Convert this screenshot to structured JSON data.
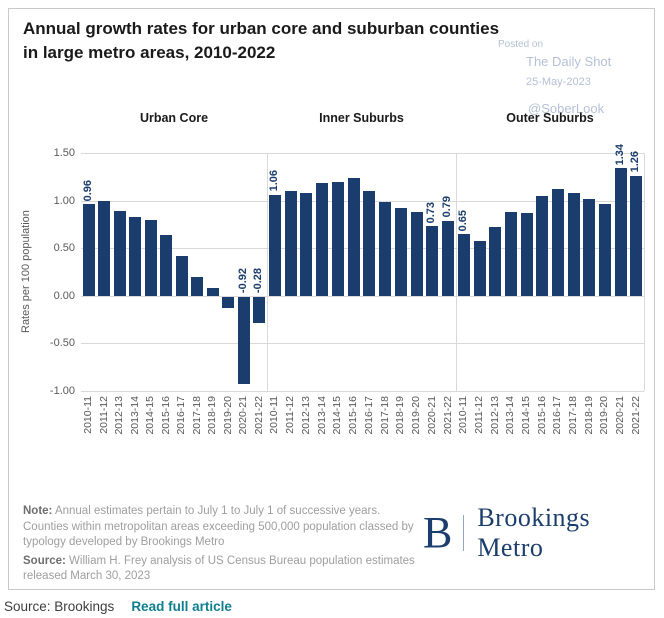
{
  "card": {
    "title": "Annual growth rates for urban core and suburban counties in large metro areas, 2010-2022",
    "watermark": {
      "line1": "Posted on",
      "line2": "The Daily Shot",
      "line3": "25-May-2023",
      "line4": "@SoberLook"
    },
    "notes": {
      "note_label": "Note:",
      "note_text": "Annual estimates pertain to July 1 to July 1 of successive years. Counties within metropolitan areas exceeding 500,000 population classed by typology developed by Brookings Metro",
      "source_label": "Source:",
      "source_text": "William H. Frey analysis of US Census Bureau population estimates released March 30, 2023"
    },
    "logo": {
      "mark": "B",
      "name": "Brookings Metro"
    }
  },
  "caption": {
    "source": "Source: Brookings",
    "link": "Read full article"
  },
  "colors": {
    "bar": "#1b3d6d",
    "bar_label": "#1b3d6d",
    "gridline": "#d9d9d9",
    "axis_text": "#595959",
    "link_teal": "#0d7e8e",
    "watermark": "#b5c1d8",
    "logo_navy": "#1c3e6e"
  },
  "chart_data": {
    "type": "bar",
    "title": "Annual growth rates for urban core and suburban counties in large metro areas, 2010-2022",
    "xlabel": "",
    "ylabel": "Rates per 100 population",
    "ylim": [
      -1.0,
      1.5
    ],
    "yticks": [
      1.5,
      1.0,
      0.5,
      0.0,
      -0.5,
      -1.0
    ],
    "ytick_labels": [
      "1.50",
      "1.00",
      "0.50",
      "0.00",
      "-0.50",
      "-1.00"
    ],
    "grid": true,
    "legend": false,
    "categories": [
      "2010-11",
      "2011-12",
      "2012-13",
      "2013-14",
      "2014-15",
      "2015-16",
      "2016-17",
      "2017-18",
      "2018-19",
      "2019-20",
      "2020-21",
      "2021-22"
    ],
    "panels": [
      {
        "name": "Urban Core",
        "values": [
          0.96,
          1.0,
          0.89,
          0.83,
          0.8,
          0.64,
          0.42,
          0.2,
          0.08,
          -0.12,
          -0.92,
          -0.28
        ],
        "bar_labels": [
          "0.96",
          null,
          null,
          null,
          null,
          null,
          null,
          null,
          null,
          null,
          "-0.92",
          "-0.28"
        ]
      },
      {
        "name": "Inner Suburbs",
        "values": [
          1.06,
          1.1,
          1.08,
          1.18,
          1.2,
          1.24,
          1.1,
          0.99,
          0.92,
          0.88,
          0.73,
          0.79
        ],
        "bar_labels": [
          "1.06",
          null,
          null,
          null,
          null,
          null,
          null,
          null,
          null,
          null,
          "0.73",
          "0.79"
        ]
      },
      {
        "name": "Outer Suburbs",
        "values": [
          0.65,
          0.58,
          0.72,
          0.88,
          0.87,
          1.05,
          1.12,
          1.08,
          1.02,
          0.96,
          1.34,
          1.26
        ],
        "bar_labels": [
          "0.65",
          null,
          null,
          null,
          null,
          null,
          null,
          null,
          null,
          null,
          "1.34",
          "1.26"
        ]
      }
    ]
  }
}
